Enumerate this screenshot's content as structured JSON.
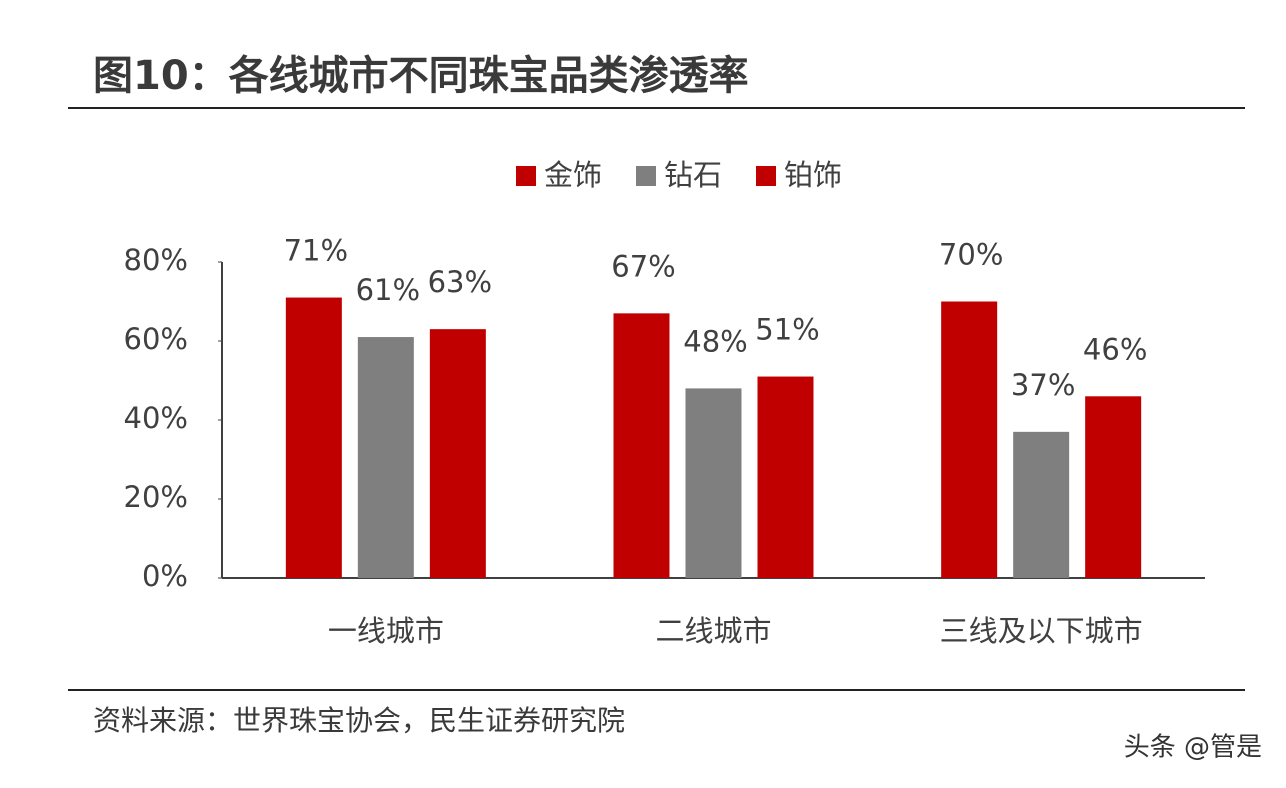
{
  "chart_data": {
    "type": "bar",
    "title": "图10：各线城市不同珠宝品类渗透率",
    "source": "资料来源：世界珠宝协会，民生证券研究院",
    "watermark": "头条 @管是",
    "categories": [
      "一线城市",
      "二线城市",
      "三线及以下城市"
    ],
    "series": [
      {
        "name": "金饰",
        "color": "#c00000",
        "values": [
          71,
          67,
          70
        ],
        "value_labels": [
          "71%",
          "67%",
          "70%"
        ]
      },
      {
        "name": "钻石",
        "color": "#7f7f7f",
        "values": [
          61,
          48,
          37
        ],
        "value_labels": [
          "61%",
          "48%",
          "37%"
        ]
      },
      {
        "name": "铂饰",
        "color": "#c00000",
        "values": [
          63,
          51,
          46
        ],
        "value_labels": [
          "63%",
          "51%",
          "46%"
        ]
      }
    ],
    "ylim": [
      0,
      80
    ],
    "yticks": [
      {
        "value": 0,
        "label": "0%"
      },
      {
        "value": 20,
        "label": "20%"
      },
      {
        "value": 40,
        "label": "40%"
      },
      {
        "value": 60,
        "label": "60%"
      },
      {
        "value": 80,
        "label": "80%"
      }
    ],
    "grid": false,
    "legend": "top"
  }
}
